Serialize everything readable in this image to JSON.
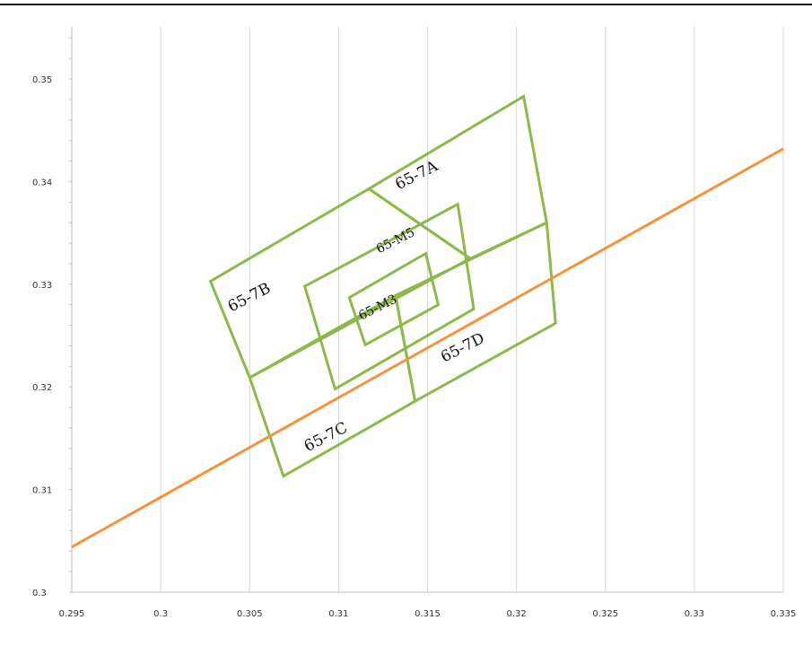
{
  "chart_data": {
    "type": "line",
    "title": "",
    "xlabel": "",
    "ylabel": "",
    "xlim": [
      0.295,
      0.335
    ],
    "ylim": [
      0.3,
      0.355
    ],
    "x_ticks": [
      "0.295",
      "0.3",
      "0.305",
      "0.31",
      "0.315",
      "0.32",
      "0.325",
      "0.33",
      "0.335"
    ],
    "x_tick_values": [
      0.295,
      0.3,
      0.305,
      0.31,
      0.315,
      0.32,
      0.325,
      0.33,
      0.335
    ],
    "y_ticks": [
      "0.3",
      "0.31",
      "0.32",
      "0.33",
      "0.34",
      "0.35"
    ],
    "y_tick_values": [
      0.3,
      0.31,
      0.32,
      0.33,
      0.34,
      0.35
    ],
    "grid": "vertical",
    "series": [
      {
        "color": "#F4923E",
        "x": [
          0.295,
          0.335
        ],
        "y": [
          0.3044,
          0.3432
        ]
      }
    ],
    "regions": [
      {
        "label": "65-7A",
        "color": "#8DB94B",
        "points": [
          [
            0.3117,
            0.3393
          ],
          [
            0.3204,
            0.3483
          ],
          [
            0.3217,
            0.336
          ],
          [
            0.3174,
            0.3325
          ]
        ]
      },
      {
        "label": "65-7B",
        "color": "#8DB94B",
        "points": [
          [
            0.3028,
            0.3303
          ],
          [
            0.3117,
            0.3393
          ],
          [
            0.3174,
            0.3325
          ],
          [
            0.305,
            0.3209
          ]
        ]
      },
      {
        "label": "65-7C",
        "color": "#8DB94B",
        "points": [
          [
            0.305,
            0.3209
          ],
          [
            0.3132,
            0.3289
          ],
          [
            0.3143,
            0.3186
          ],
          [
            0.3069,
            0.3113
          ]
        ]
      },
      {
        "label": "65-7D",
        "color": "#8DB94B",
        "points": [
          [
            0.3132,
            0.3289
          ],
          [
            0.3217,
            0.336
          ],
          [
            0.3222,
            0.3262
          ],
          [
            0.3143,
            0.3186
          ]
        ]
      },
      {
        "label": "65-M5",
        "color": "#8DB94B",
        "points": [
          [
            0.3081,
            0.3298
          ],
          [
            0.3167,
            0.3378
          ],
          [
            0.3176,
            0.3276
          ],
          [
            0.3098,
            0.3198
          ]
        ]
      },
      {
        "label": "65-M3",
        "color": "#8DB94B",
        "points": [
          [
            0.3106,
            0.3287
          ],
          [
            0.3149,
            0.333
          ],
          [
            0.3156,
            0.328
          ],
          [
            0.3115,
            0.3241
          ]
        ]
      }
    ],
    "region_labels": [
      {
        "text": "65-7A",
        "x": 0.3145,
        "y": 0.3402,
        "size": "large"
      },
      {
        "text": "65-7B",
        "x": 0.3051,
        "y": 0.3283,
        "size": "large"
      },
      {
        "text": "65-7C",
        "x": 0.3094,
        "y": 0.3147,
        "size": "large"
      },
      {
        "text": "65-7D",
        "x": 0.3171,
        "y": 0.3234,
        "size": "large"
      },
      {
        "text": "65-M5",
        "x": 0.3133,
        "y": 0.3339,
        "size": "small"
      },
      {
        "text": "65-M3",
        "x": 0.3123,
        "y": 0.3274,
        "size": "small"
      }
    ]
  }
}
